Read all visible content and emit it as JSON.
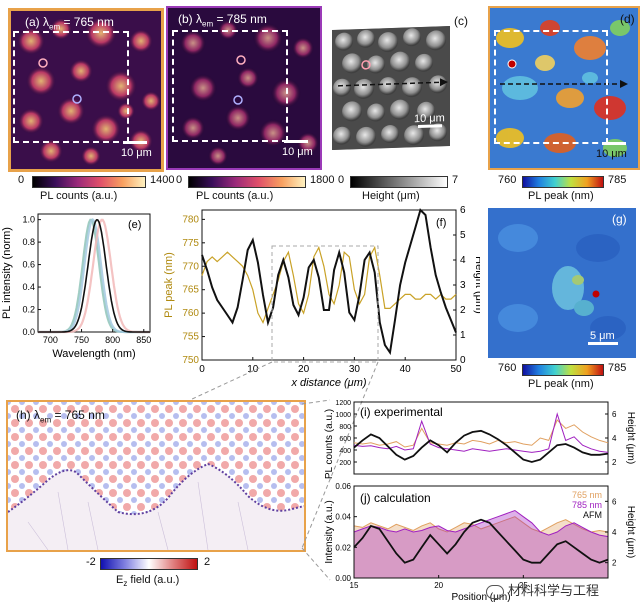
{
  "panels": {
    "a": {
      "label_prefix": "(a) λ",
      "label_sub": "em",
      "label_suffix": " = 765 nm",
      "scale": "10 μm",
      "cbar_min": "0",
      "cbar_max": "1400",
      "cbar_title": "PL counts (a.u.)"
    },
    "b": {
      "label_prefix": "(b) λ",
      "label_sub": "em",
      "label_suffix": " = 785 nm",
      "scale": "10 μm",
      "cbar_min": "0",
      "cbar_max": "1800",
      "cbar_title": "PL counts (a.u.)"
    },
    "c": {
      "label": "(c)",
      "scale": "10 μm",
      "cbar_min": "0",
      "cbar_max": "7",
      "cbar_title": "Height (μm)"
    },
    "d": {
      "label": "(d)",
      "scale": "10 μm",
      "cbar_min": "760",
      "cbar_max": "785",
      "cbar_title": "PL peak (nm)"
    },
    "g": {
      "label": "(g)",
      "scale": "5 μm",
      "cbar_min": "760",
      "cbar_max": "785",
      "cbar_title": "PL peak (nm)"
    },
    "h": {
      "label_prefix": "(h) λ",
      "label_sub": "em",
      "label_suffix": " = 765 nm",
      "cbar_min": "-2",
      "cbar_max": "2",
      "cbar_title_main": "E",
      "cbar_title_sub": "z",
      "cbar_title_rest": " field (a.u.)"
    }
  },
  "watermark": "材料科学与工程",
  "chart_data": [
    {
      "id": "e",
      "type": "line",
      "panel_label": "(e)",
      "xlabel": "Wavelength (nm)",
      "ylabel": "PL intensity (norm)",
      "xlim": [
        680,
        860
      ],
      "ylim": [
        0,
        1.05
      ],
      "xticks": [
        700,
        750,
        800,
        850
      ],
      "yticks": [
        0.0,
        0.2,
        0.4,
        0.6,
        0.8,
        1.0
      ],
      "series": [
        {
          "color": "#8fc4b8",
          "peak": 765,
          "width": 22
        },
        {
          "color": "#a3c9e0",
          "peak": 768,
          "width": 22
        },
        {
          "color": "#f2b8b8",
          "peak": 783,
          "width": 24
        },
        {
          "color": "#111111",
          "peak": 775,
          "width": 24
        }
      ]
    },
    {
      "id": "f",
      "type": "line",
      "panel_label": "(f)",
      "xlabel": "x distance (μm)",
      "ylabel": "PL peak (nm)",
      "y2label": "Height (μm)",
      "xlim": [
        0,
        50
      ],
      "ylim": [
        750,
        782
      ],
      "y2lim": [
        0,
        6
      ],
      "xticks": [
        0,
        10,
        20,
        30,
        40,
        50
      ],
      "yticks": [
        750,
        755,
        760,
        765,
        770,
        775,
        780
      ],
      "y2ticks": [
        0,
        1,
        2,
        3,
        4,
        5,
        6
      ],
      "series": [
        {
          "name": "PL peak",
          "color": "#c9a227",
          "x": [
            0,
            1,
            2,
            3,
            4,
            5,
            6,
            7,
            8,
            9,
            10,
            11,
            12,
            13,
            14,
            15,
            16,
            17,
            18,
            19,
            20,
            21,
            22,
            23,
            24,
            25,
            26,
            27,
            28,
            29,
            30,
            31,
            32,
            33,
            34,
            35,
            36,
            37,
            38,
            39,
            40,
            41,
            42,
            43,
            44,
            45,
            46,
            47,
            48,
            49,
            50
          ],
          "y": [
            768,
            771,
            772,
            771,
            772,
            773,
            772,
            771,
            770,
            768,
            765,
            760,
            758,
            761,
            764,
            767,
            771,
            773,
            768,
            762,
            760,
            764,
            772,
            774,
            770,
            764,
            762,
            766,
            773,
            772,
            765,
            762,
            764,
            772,
            774,
            768,
            761,
            761,
            762,
            763,
            764,
            764,
            763,
            763,
            764,
            764,
            763,
            764,
            763,
            763,
            764
          ]
        },
        {
          "name": "Height",
          "color": "#111111",
          "x": [
            0,
            1,
            2,
            3,
            4,
            5,
            6,
            7,
            8,
            9,
            10,
            11,
            12,
            13,
            14,
            15,
            16,
            17,
            18,
            19,
            20,
            21,
            22,
            23,
            24,
            25,
            26,
            27,
            28,
            29,
            30,
            31,
            32,
            33,
            34,
            35,
            36,
            37,
            38,
            39,
            40,
            41,
            42,
            43,
            44,
            45,
            46,
            47,
            48,
            49,
            50
          ],
          "y": [
            4.2,
            3.6,
            2.9,
            2.4,
            2.1,
            1.8,
            1.5,
            2.1,
            3.2,
            4.4,
            4.8,
            3.9,
            2.6,
            1.5,
            2.1,
            3.4,
            4.0,
            3.3,
            2.2,
            1.8,
            2.5,
            3.7,
            4.0,
            3.3,
            2.0,
            2.0,
            3.6,
            4.3,
            3.5,
            1.9,
            1.6,
            2.6,
            4.0,
            4.3,
            3.5,
            1.5,
            0.6,
            0.3,
            1.6,
            3.0,
            3.9,
            4.6,
            5.3,
            6.0,
            5.8,
            4.5,
            3.4,
            2.7,
            2.1,
            1.6,
            1.1
          ]
        }
      ]
    },
    {
      "id": "i",
      "type": "line",
      "panel_label": "(i) experimental",
      "ylabel": "PL counts (a.u.)",
      "y2label": "Height (μm)",
      "xlim": [
        15,
        30
      ],
      "ylim": [
        0,
        1200
      ],
      "y2lim": [
        1,
        7
      ],
      "yticks": [
        200,
        400,
        600,
        800,
        1000,
        1200
      ],
      "y2ticks": [
        2,
        4,
        6
      ],
      "series": [
        {
          "name": "765 nm",
          "color": "#e0a060",
          "x": [
            15,
            15.5,
            16,
            16.5,
            17,
            17.5,
            18,
            18.5,
            19,
            19.5,
            20,
            20.5,
            21,
            21.5,
            22,
            22.5,
            23,
            23.5,
            24,
            24.5,
            25,
            25.5,
            26,
            26.5,
            27,
            27.5,
            28,
            28.5,
            29,
            29.5,
            30
          ],
          "y": [
            520,
            500,
            520,
            480,
            500,
            540,
            450,
            480,
            760,
            520,
            500,
            480,
            520,
            500,
            560,
            540,
            500,
            560,
            520,
            540,
            500,
            480,
            600,
            560,
            900,
            760,
            820,
            700,
            620,
            560,
            520
          ]
        },
        {
          "name": "785 nm",
          "color": "#a020c0",
          "x": [
            15,
            15.5,
            16,
            16.5,
            17,
            17.5,
            18,
            18.5,
            19,
            19.5,
            20,
            20.5,
            21,
            21.5,
            22,
            22.5,
            23,
            23.5,
            24,
            24.5,
            25,
            25.5,
            26,
            26.5,
            27,
            27.5,
            28,
            28.5,
            29,
            29.5,
            30
          ],
          "y": [
            480,
            460,
            470,
            440,
            420,
            460,
            400,
            420,
            880,
            500,
            440,
            420,
            400,
            380,
            420,
            400,
            380,
            400,
            420,
            400,
            380,
            360,
            380,
            420,
            1000,
            560,
            620,
            480,
            420,
            380,
            360
          ]
        },
        {
          "name": "AFM",
          "color": "#111111",
          "axis": "y2",
          "x": [
            15,
            15.5,
            16,
            16.5,
            17,
            17.5,
            18,
            18.5,
            19,
            19.5,
            20,
            20.5,
            21,
            21.5,
            22,
            22.5,
            23,
            23.5,
            24,
            24.5,
            25,
            25.5,
            26,
            26.5,
            27,
            27.5,
            28,
            28.5,
            29,
            29.5,
            30
          ],
          "y": [
            3.2,
            3.8,
            4.3,
            4.0,
            3.3,
            2.6,
            2.2,
            2.5,
            3.2,
            3.8,
            3.4,
            2.8,
            3.6,
            4.2,
            4.5,
            4.6,
            4.3,
            3.9,
            3.4,
            2.8,
            2.2,
            2.0,
            2.2,
            2.8,
            3.4,
            3.5,
            3.2,
            2.8,
            2.6,
            2.6,
            2.7
          ]
        }
      ]
    },
    {
      "id": "j",
      "type": "area",
      "panel_label": "(j) calculation",
      "xlabel": "Position (μm)",
      "ylabel": "Intensity (a.u.)",
      "y2label": "Height (μm)",
      "xlim": [
        15,
        30
      ],
      "ylim": [
        0,
        0.06
      ],
      "y2lim": [
        1,
        7
      ],
      "xticks": [
        15,
        20,
        25
      ],
      "yticks": [
        0.0,
        0.02,
        0.04,
        0.06
      ],
      "y2ticks": [
        2,
        4,
        6
      ],
      "legend": [
        "765 nm",
        "785 nm",
        "AFM"
      ],
      "legend_position": "top-right",
      "series": [
        {
          "name": "765 nm",
          "color": "#e0a060",
          "x": [
            15,
            15.5,
            16,
            16.5,
            17,
            17.5,
            18,
            18.5,
            19,
            19.5,
            20,
            20.5,
            21,
            21.5,
            22,
            22.5,
            23,
            23.5,
            24,
            24.5,
            25,
            25.5,
            26,
            26.5,
            27,
            27.5,
            28,
            28.5,
            29,
            29.5,
            30
          ],
          "y": [
            0.034,
            0.033,
            0.036,
            0.034,
            0.032,
            0.035,
            0.033,
            0.031,
            0.034,
            0.036,
            0.032,
            0.03,
            0.033,
            0.036,
            0.035,
            0.032,
            0.034,
            0.036,
            0.038,
            0.04,
            0.036,
            0.032,
            0.03,
            0.033,
            0.036,
            0.038,
            0.035,
            0.032,
            0.03,
            0.031,
            0.03
          ]
        },
        {
          "name": "785 nm",
          "color": "#a020c0",
          "x": [
            15,
            15.5,
            16,
            16.5,
            17,
            17.5,
            18,
            18.5,
            19,
            19.5,
            20,
            20.5,
            21,
            21.5,
            22,
            22.5,
            23,
            23.5,
            24,
            24.5,
            25,
            25.5,
            26,
            26.5,
            27,
            27.5,
            28,
            28.5,
            29,
            29.5,
            30
          ],
          "y": [
            0.03,
            0.032,
            0.034,
            0.033,
            0.031,
            0.03,
            0.032,
            0.03,
            0.031,
            0.033,
            0.034,
            0.031,
            0.03,
            0.032,
            0.034,
            0.036,
            0.038,
            0.04,
            0.042,
            0.044,
            0.04,
            0.036,
            0.03,
            0.028,
            0.03,
            0.034,
            0.036,
            0.033,
            0.03,
            0.028,
            0.027
          ]
        },
        {
          "name": "AFM",
          "color": "#111111",
          "axis": "y2",
          "x": [
            15,
            15.5,
            16,
            16.5,
            17,
            17.5,
            18,
            18.5,
            19,
            19.5,
            20,
            20.5,
            21,
            21.5,
            22,
            22.5,
            23,
            23.5,
            24,
            24.5,
            25,
            25.5,
            26,
            26.5,
            27,
            27.5,
            28,
            28.5,
            29,
            29.5,
            30
          ],
          "y": [
            3.0,
            3.6,
            4.4,
            4.2,
            3.4,
            2.6,
            2.0,
            2.2,
            3.0,
            3.8,
            3.2,
            2.6,
            3.2,
            4.0,
            4.6,
            4.8,
            4.6,
            4.0,
            3.4,
            2.8,
            2.2,
            2.0,
            2.0,
            2.6,
            3.2,
            3.4,
            3.0,
            2.6,
            2.2,
            2.0,
            2.2
          ]
        }
      ]
    }
  ]
}
